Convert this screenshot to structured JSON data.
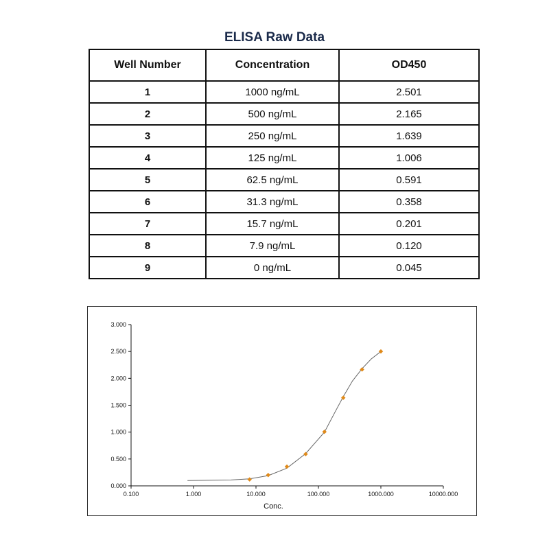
{
  "table": {
    "title": "ELISA Raw Data",
    "headers": [
      "Well Number",
      "Concentration",
      "OD450"
    ],
    "rows": [
      [
        "1",
        "1000 ng/mL",
        "2.501"
      ],
      [
        "2",
        "500 ng/mL",
        "2.165"
      ],
      [
        "3",
        "250 ng/mL",
        "1.639"
      ],
      [
        "4",
        "125 ng/mL",
        "1.006"
      ],
      [
        "5",
        "62.5 ng/mL",
        "0.591"
      ],
      [
        "6",
        "31.3 ng/mL",
        "0.358"
      ],
      [
        "7",
        "15.7 ng/mL",
        "0.201"
      ],
      [
        "8",
        "7.9 ng/mL",
        "0.120"
      ],
      [
        "9",
        "0 ng/mL",
        "0.045"
      ]
    ]
  },
  "chart_data": {
    "type": "scatter",
    "xlabel": "Conc.",
    "ylabel": "",
    "xscale": "log",
    "xlim": [
      0.1,
      10000
    ],
    "ylim": [
      0,
      3.0
    ],
    "x_ticks": [
      "0.100",
      "1.000",
      "10.000",
      "100.000",
      "1000.000",
      "10000.000"
    ],
    "y_ticks": [
      "0.000",
      "0.500",
      "1.000",
      "1.500",
      "2.000",
      "2.500",
      "3.000"
    ],
    "grid": false,
    "points": {
      "x": [
        7.9,
        15.7,
        31.3,
        62.5,
        125,
        250,
        500,
        1000
      ],
      "y": [
        0.12,
        0.201,
        0.358,
        0.591,
        1.006,
        1.639,
        2.165,
        2.501
      ]
    },
    "fit_curve": {
      "x": [
        0.8,
        2,
        4,
        7.9,
        15.7,
        31.3,
        62.5,
        125,
        180,
        250,
        350,
        500,
        700,
        1000
      ],
      "y": [
        0.1,
        0.105,
        0.11,
        0.13,
        0.19,
        0.33,
        0.6,
        1.0,
        1.35,
        1.66,
        1.95,
        2.18,
        2.36,
        2.5
      ]
    },
    "colors": {
      "marker": "#e08a1a",
      "curve": "#666666",
      "axis": "#111111"
    }
  }
}
